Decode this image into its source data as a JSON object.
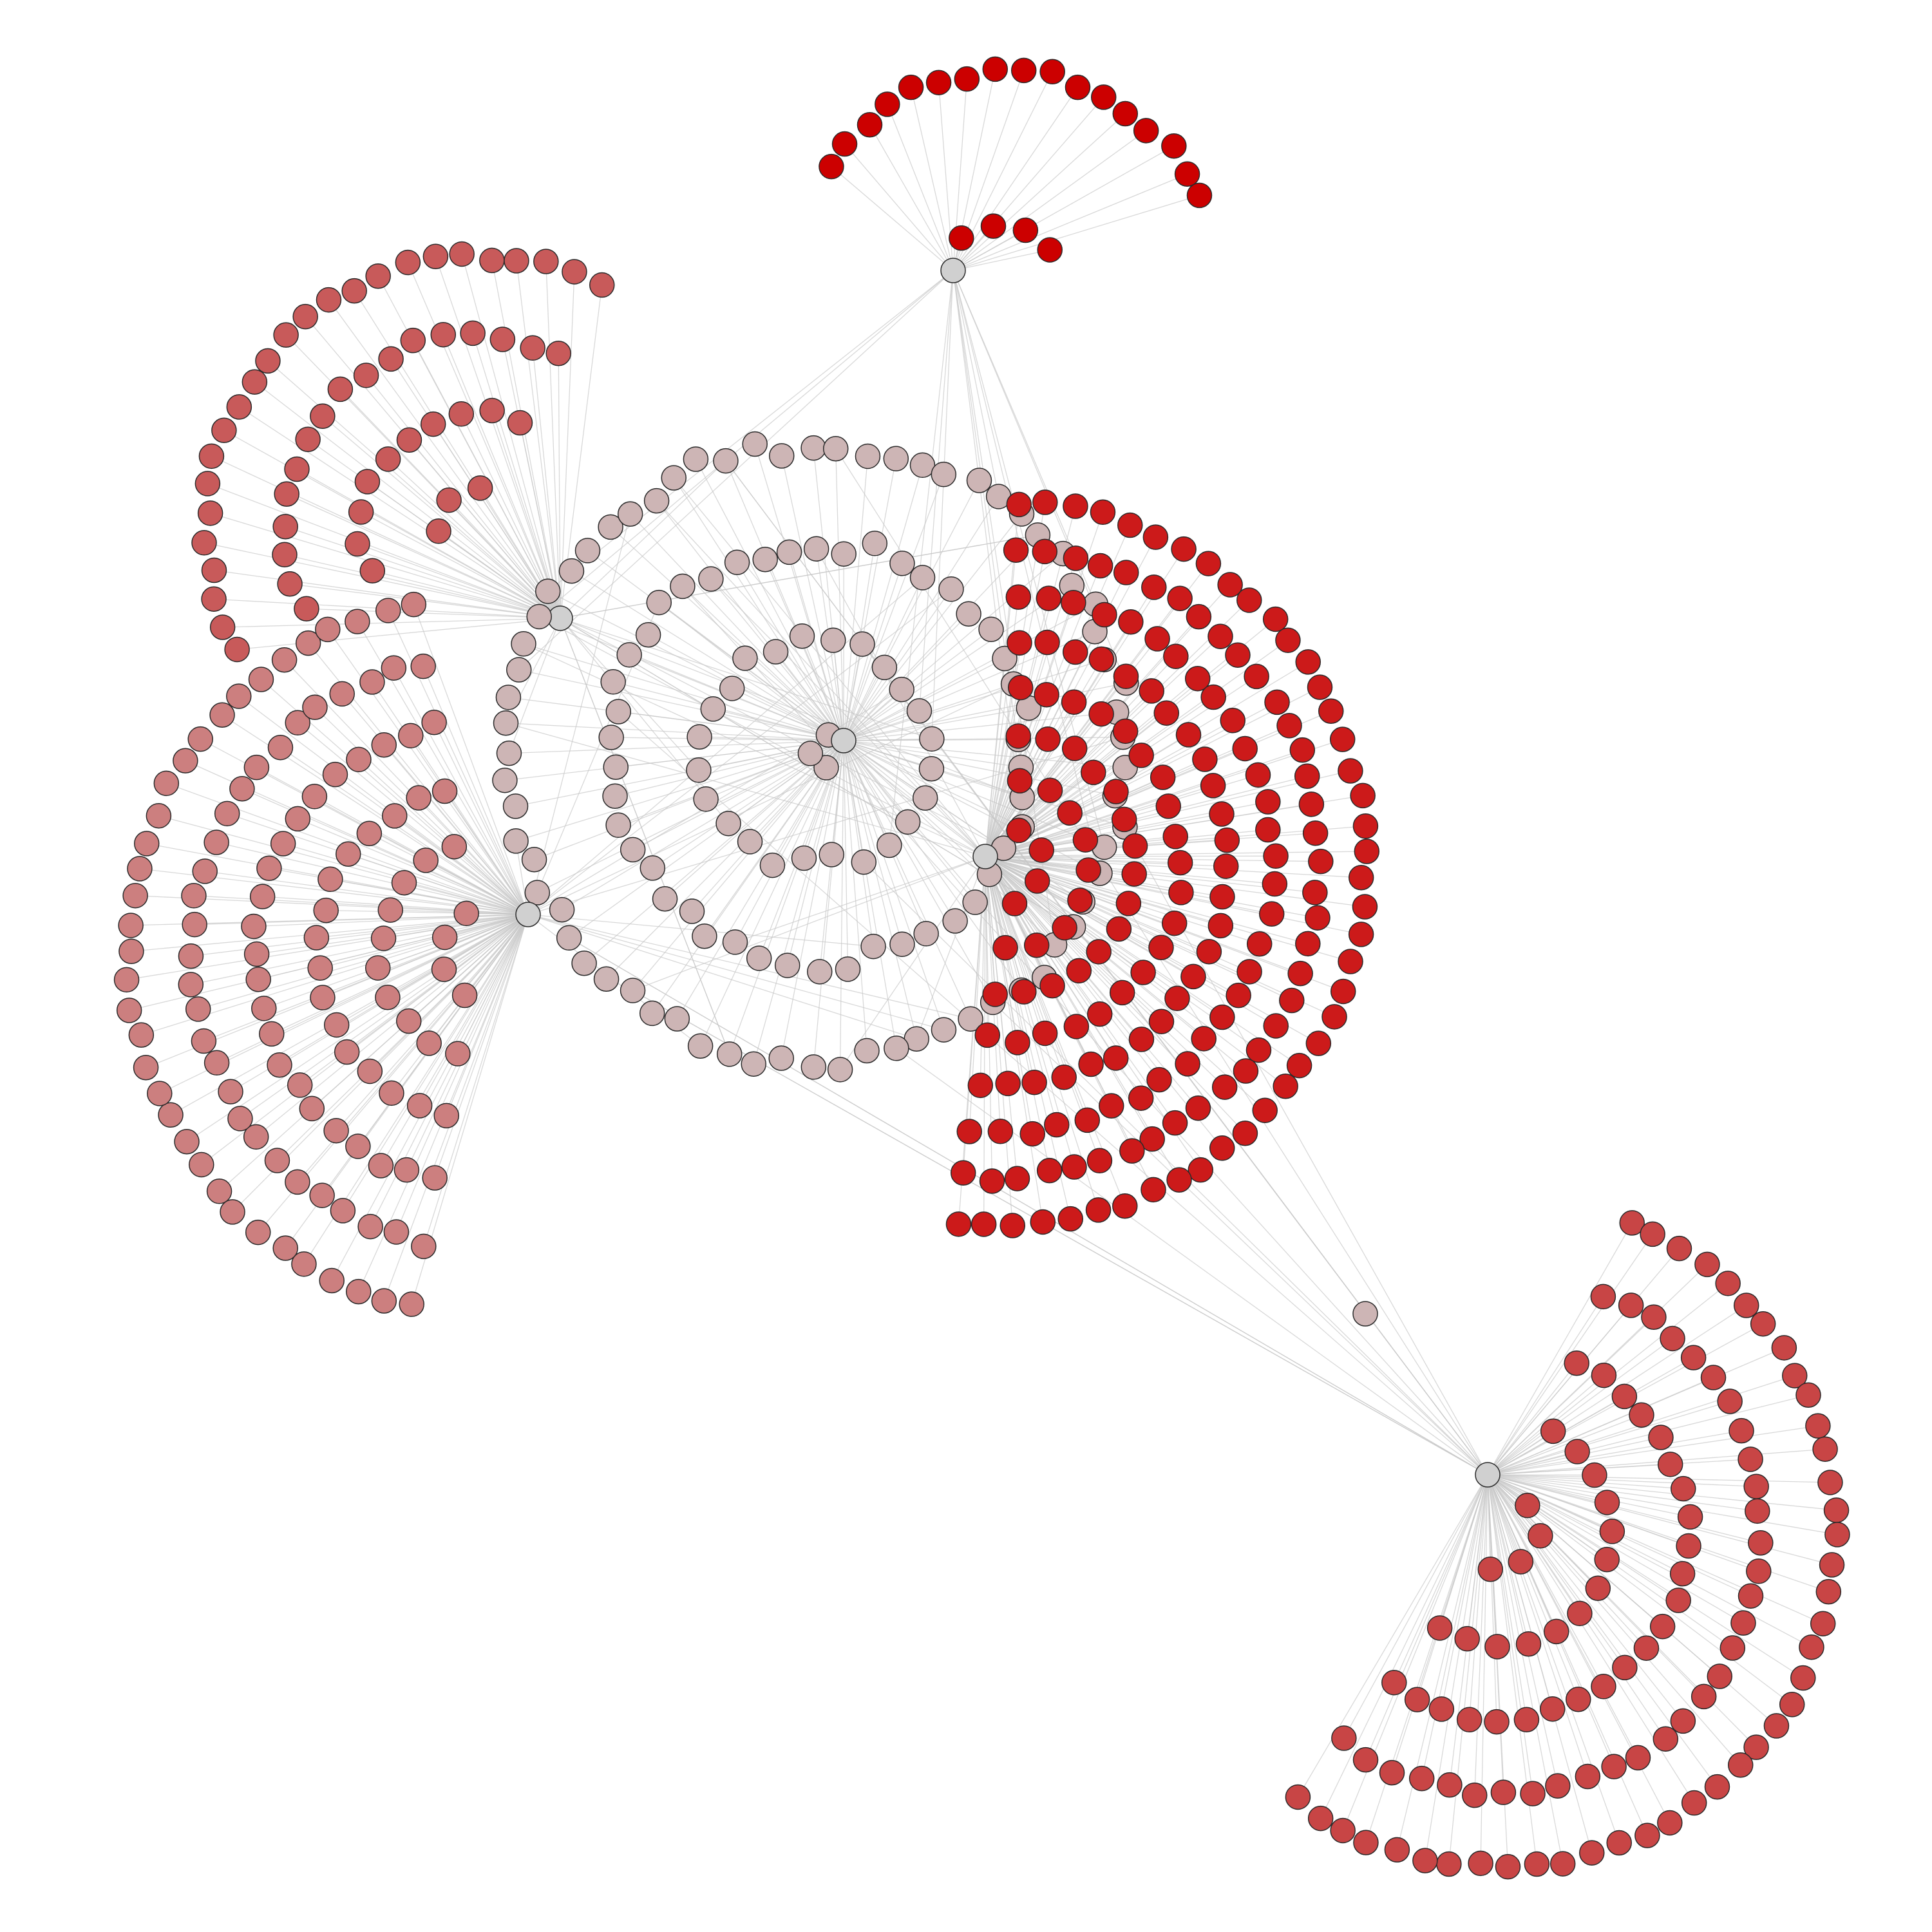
{
  "diagram": {
    "type": "network-graph",
    "title": "",
    "node_stroke": "#2a2a2a",
    "edge_color": "#c8c8c8",
    "background": "#ffffff",
    "color_scale": {
      "low": "#d0d0d0",
      "high": "#cc0000"
    },
    "clusters": [
      {
        "id": "top",
        "color": "#cc0000",
        "node_count": 60
      },
      {
        "id": "upper-left",
        "color": "#c85a5a",
        "node_count": 140
      },
      {
        "id": "center",
        "color": "#cdb5b5",
        "node_count": 170
      },
      {
        "id": "left",
        "color": "#cc7f7f",
        "node_count": 250
      },
      {
        "id": "right",
        "color": "#cc1a1a",
        "node_count": 330
      },
      {
        "id": "bottom-right",
        "color": "#c84545",
        "node_count": 190
      }
    ]
  }
}
